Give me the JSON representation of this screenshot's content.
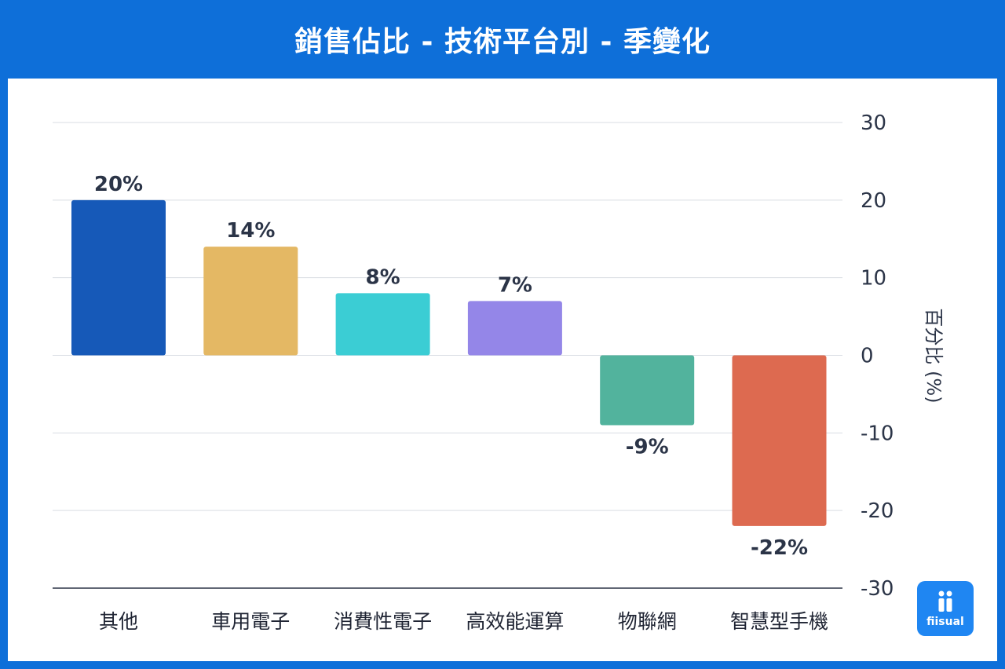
{
  "header": {
    "title": "銷售佔比 - 技術平台別 - 季變化"
  },
  "brand": {
    "name": "fiisual",
    "color": "#1f86f2"
  },
  "colors": {
    "background": "#0e6fd9",
    "panel": "#ffffff"
  },
  "chart_data": {
    "type": "bar",
    "title": "銷售佔比 - 技術平台別 - 季變化",
    "categories": [
      "其他",
      "車用電子",
      "消費性電子",
      "高效能運算",
      "物聯網",
      "智慧型手機"
    ],
    "values": [
      20,
      14,
      8,
      7,
      -9,
      -22
    ],
    "labels": [
      "20%",
      "14%",
      "8%",
      "7%",
      "-9%",
      "-22%"
    ],
    "colors": [
      "#1659b8",
      "#e4b864",
      "#3bcdd4",
      "#9486e8",
      "#52b39d",
      "#dd6a50"
    ],
    "ylabel": "百分比 (%)",
    "ylim": [
      -30,
      30
    ],
    "yticks": [
      30,
      20,
      10,
      0,
      -10,
      -20,
      -30
    ],
    "grid": true
  }
}
